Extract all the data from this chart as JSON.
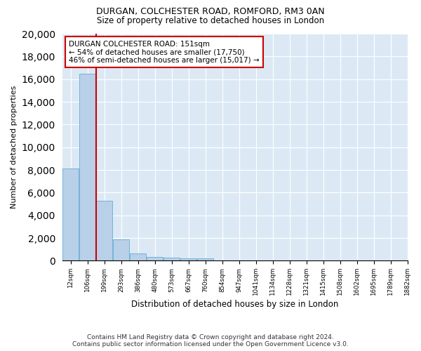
{
  "title": "DURGAN, COLCHESTER ROAD, ROMFORD, RM3 0AN",
  "subtitle": "Size of property relative to detached houses in London",
  "xlabel": "Distribution of detached houses by size in London",
  "ylabel": "Number of detached properties",
  "bar_color": "#b8d0e8",
  "bar_edge_color": "#6aaad4",
  "background_color": "#dce9f5",
  "grid_color": "#ffffff",
  "annotation_box_color": "#cc0000",
  "property_line_color": "#cc0000",
  "annotation_title": "DURGAN COLCHESTER ROAD: 151sqm",
  "annotation_line1": "← 54% of detached houses are smaller (17,750)",
  "annotation_line2": "46% of semi-detached houses are larger (15,017) →",
  "footer_line1": "Contains HM Land Registry data © Crown copyright and database right 2024.",
  "footer_line2": "Contains public sector information licensed under the Open Government Licence v3.0.",
  "bin_labels": [
    "12sqm",
    "106sqm",
    "199sqm",
    "293sqm",
    "386sqm",
    "480sqm",
    "573sqm",
    "667sqm",
    "760sqm",
    "854sqm",
    "947sqm",
    "1041sqm",
    "1134sqm",
    "1228sqm",
    "1321sqm",
    "1415sqm",
    "1508sqm",
    "1602sqm",
    "1695sqm",
    "1789sqm",
    "1882sqm"
  ],
  "values": [
    8100,
    16500,
    5300,
    1850,
    650,
    330,
    260,
    195,
    180,
    0,
    0,
    0,
    0,
    0,
    0,
    0,
    0,
    0,
    0,
    0
  ],
  "property_bar_index": 1,
  "ylim": [
    0,
    20000
  ],
  "yticks": [
    0,
    2000,
    4000,
    6000,
    8000,
    10000,
    12000,
    14000,
    16000,
    18000,
    20000
  ]
}
